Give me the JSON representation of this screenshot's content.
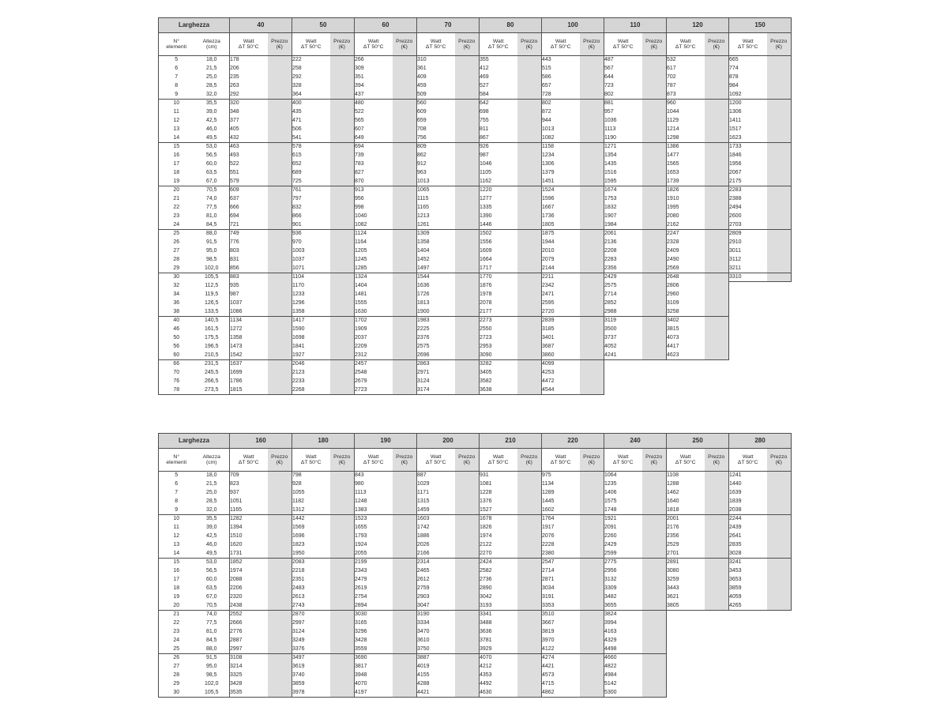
{
  "labels": {
    "larghezza": "Larghezza",
    "elementi_l1": "N°",
    "elementi_l2": "elementi",
    "altezza_l1": "Altezza",
    "altezza_l2": "(cm)",
    "watt_l1": "Watt",
    "watt_l2": "ΔT 50°C",
    "prezzo_l1": "Prezzo",
    "prezzo_l2": "(€)"
  },
  "colors": {
    "header_bg": "#d5d5d5",
    "prezzo_bg": "#dddddd",
    "line": "#4d4d4d",
    "text": "#2b2b2b",
    "page_bg": "#ffffff"
  },
  "tables": [
    {
      "name": "larghezza-40-150",
      "widths": [
        "40",
        "50",
        "60",
        "70",
        "80",
        "100",
        "110",
        "120",
        "150"
      ],
      "row_format": [
        "n_elementi",
        "altezza_cm",
        "watt_per_width..."
      ],
      "groups": [
        [
          [
            "5",
            "18,0",
            178,
            222,
            266,
            310,
            355,
            443,
            487,
            532,
            665
          ],
          [
            "6",
            "21,5",
            206,
            258,
            309,
            361,
            412,
            515,
            567,
            617,
            774
          ],
          [
            "7",
            "25,0",
            235,
            292,
            351,
            409,
            469,
            586,
            644,
            702,
            878
          ],
          [
            "8",
            "28,5",
            263,
            328,
            394,
            459,
            527,
            657,
            723,
            787,
            984
          ],
          [
            "9",
            "32,0",
            292,
            364,
            437,
            509,
            584,
            728,
            802,
            873,
            1092
          ]
        ],
        [
          [
            "10",
            "35,5",
            320,
            400,
            480,
            560,
            642,
            802,
            881,
            960,
            1200
          ],
          [
            "11",
            "39,0",
            348,
            435,
            522,
            609,
            698,
            872,
            957,
            1044,
            1306
          ],
          [
            "12",
            "42,5",
            377,
            471,
            565,
            659,
            755,
            944,
            1036,
            1129,
            1411
          ],
          [
            "13",
            "46,0",
            405,
            506,
            607,
            708,
            811,
            1013,
            1113,
            1214,
            1517
          ],
          [
            "14",
            "49,5",
            432,
            541,
            649,
            756,
            867,
            1082,
            1190,
            1298,
            1623
          ]
        ],
        [
          [
            "15",
            "53,0",
            463,
            578,
            694,
            809,
            926,
            1158,
            1271,
            1386,
            1733
          ],
          [
            "16",
            "56,5",
            493,
            615,
            739,
            862,
            987,
            1234,
            1354,
            1477,
            1846
          ],
          [
            "17",
            "60,0",
            522,
            652,
            783,
            912,
            1046,
            1306,
            1435,
            1565,
            1956
          ],
          [
            "18",
            "63,5",
            551,
            689,
            827,
            963,
            1105,
            1379,
            1516,
            1653,
            2067
          ],
          [
            "19",
            "67,0",
            579,
            725,
            870,
            1013,
            1162,
            1451,
            1595,
            1739,
            2175
          ]
        ],
        [
          [
            "20",
            "70,5",
            609,
            761,
            913,
            1065,
            1220,
            1524,
            1674,
            1826,
            2283
          ],
          [
            "21",
            "74,0",
            637,
            797,
            956,
            1115,
            1277,
            1596,
            1753,
            1910,
            2388
          ],
          [
            "22",
            "77,5",
            666,
            832,
            998,
            1165,
            1335,
            1667,
            1832,
            1995,
            2494
          ],
          [
            "23",
            "81,0",
            694,
            866,
            1040,
            1213,
            1390,
            1736,
            1907,
            2080,
            2600
          ],
          [
            "24",
            "84,5",
            721,
            901,
            1082,
            1261,
            1446,
            1805,
            1984,
            2162,
            2703
          ]
        ],
        [
          [
            "25",
            "88,0",
            749,
            936,
            1124,
            1309,
            1502,
            1875,
            2061,
            2247,
            2809
          ],
          [
            "26",
            "91,5",
            776,
            970,
            1164,
            1358,
            1556,
            1944,
            2136,
            2328,
            2910
          ],
          [
            "27",
            "95,0",
            803,
            1003,
            1205,
            1404,
            1609,
            2010,
            2208,
            2409,
            3011
          ],
          [
            "28",
            "98,5",
            831,
            1037,
            1245,
            1452,
            1664,
            2079,
            2283,
            2490,
            3112
          ],
          [
            "29",
            "102,0",
            856,
            1071,
            1285,
            1497,
            1717,
            2144,
            2356,
            2569,
            3211
          ]
        ],
        [
          [
            "30",
            "105,5",
            883,
            1104,
            1324,
            1544,
            1770,
            2211,
            2429,
            2648,
            3310
          ],
          [
            "32",
            "112,5",
            935,
            1170,
            1404,
            1636,
            1876,
            2342,
            2575,
            2806,
            null
          ],
          [
            "34",
            "119,5",
            987,
            1233,
            1481,
            1726,
            1978,
            2471,
            2714,
            2960,
            null
          ],
          [
            "36",
            "126,5",
            1037,
            1296,
            1555,
            1813,
            2078,
            2595,
            2852,
            3109,
            null
          ],
          [
            "38",
            "133,5",
            1086,
            1358,
            1630,
            1900,
            2177,
            2720,
            2988,
            3258,
            null
          ]
        ],
        [
          [
            "40",
            "140,5",
            1134,
            1417,
            1702,
            1983,
            2273,
            2839,
            3119,
            3402,
            null
          ],
          [
            "46",
            "161,5",
            1272,
            1590,
            1909,
            2225,
            2550,
            3185,
            3500,
            3815,
            null
          ],
          [
            "50",
            "175,5",
            1358,
            1698,
            2037,
            2376,
            2723,
            3401,
            3737,
            4073,
            null
          ],
          [
            "56",
            "196,5",
            1473,
            1841,
            2209,
            2575,
            2953,
            3687,
            4052,
            4417,
            null
          ],
          [
            "60",
            "210,5",
            1542,
            1927,
            2312,
            2696,
            3090,
            3860,
            4241,
            4623,
            null
          ]
        ],
        [
          [
            "66",
            "231,5",
            1637,
            2046,
            2457,
            2863,
            3282,
            4099,
            null,
            null,
            null
          ],
          [
            "70",
            "245,5",
            1699,
            2123,
            2548,
            2971,
            3405,
            4253,
            null,
            null,
            null
          ],
          [
            "76",
            "266,5",
            1786,
            2233,
            2679,
            3124,
            3582,
            4472,
            null,
            null,
            null
          ],
          [
            "78",
            "273,5",
            1815,
            2268,
            2723,
            3174,
            3638,
            4544,
            null,
            null,
            null
          ]
        ]
      ]
    },
    {
      "name": "larghezza-160-280",
      "widths": [
        "160",
        "180",
        "190",
        "200",
        "210",
        "220",
        "240",
        "250",
        "280"
      ],
      "row_format": [
        "n_elementi",
        "altezza_cm",
        "watt_per_width..."
      ],
      "groups": [
        [
          [
            "5",
            "18,0",
            709,
            798,
            843,
            887,
            931,
            975,
            1064,
            1108,
            1241
          ],
          [
            "6",
            "21,5",
            823,
            928,
            980,
            1029,
            1081,
            1134,
            1235,
            1288,
            1440
          ],
          [
            "7",
            "25,0",
            937,
            1055,
            1113,
            1171,
            1228,
            1289,
            1406,
            1462,
            1639
          ],
          [
            "8",
            "28,5",
            1051,
            1182,
            1248,
            1315,
            1376,
            1445,
            1575,
            1640,
            1839
          ],
          [
            "9",
            "32,0",
            1165,
            1312,
            1383,
            1459,
            1527,
            1602,
            1748,
            1818,
            2038
          ]
        ],
        [
          [
            "10",
            "35,5",
            1282,
            1442,
            1523,
            1603,
            1678,
            1764,
            1921,
            2001,
            2244
          ],
          [
            "11",
            "39,0",
            1394,
            1569,
            1655,
            1742,
            1826,
            1917,
            2091,
            2176,
            2439
          ],
          [
            "12",
            "42,5",
            1510,
            1696,
            1793,
            1886,
            1974,
            2076,
            2260,
            2356,
            2641
          ],
          [
            "13",
            "46,0",
            1620,
            1823,
            1924,
            2026,
            2122,
            2228,
            2429,
            2529,
            2835
          ],
          [
            "14",
            "49,5",
            1731,
            1950,
            2055,
            2166,
            2270,
            2380,
            2599,
            2701,
            3028
          ]
        ],
        [
          [
            "15",
            "53,0",
            1852,
            2083,
            2199,
            2314,
            2424,
            2547,
            2775,
            2891,
            3241
          ],
          [
            "16",
            "56,5",
            1974,
            2218,
            2343,
            2465,
            2582,
            2714,
            2956,
            3080,
            3453
          ],
          [
            "17",
            "60,0",
            2088,
            2351,
            2479,
            2612,
            2736,
            2871,
            3132,
            3259,
            3653
          ],
          [
            "18",
            "63,5",
            2206,
            2483,
            2619,
            2759,
            2890,
            3034,
            3309,
            3443,
            3859
          ],
          [
            "19",
            "67,0",
            2320,
            2613,
            2754,
            2903,
            3042,
            3191,
            3482,
            3621,
            4059
          ],
          [
            "20",
            "70,5",
            2438,
            2743,
            2894,
            3047,
            3193,
            3353,
            3655,
            3805,
            4265
          ]
        ],
        [
          [
            "21",
            "74,0",
            2552,
            2870,
            3030,
            3190,
            3341,
            3510,
            3824,
            null,
            null
          ],
          [
            "22",
            "77,5",
            2666,
            2997,
            3165,
            3334,
            3488,
            3667,
            3994,
            null,
            null
          ],
          [
            "23",
            "81,0",
            2776,
            3124,
            3296,
            3470,
            3636,
            3819,
            4163,
            null,
            null
          ],
          [
            "24",
            "84,5",
            2887,
            3249,
            3428,
            3610,
            3781,
            3970,
            4329,
            null,
            null
          ],
          [
            "25",
            "88,0",
            2997,
            3376,
            3559,
            3750,
            3929,
            4122,
            4498,
            null,
            null
          ]
        ],
        [
          [
            "26",
            "91,5",
            3108,
            3497,
            3690,
            3887,
            4070,
            4274,
            4660,
            null,
            null
          ],
          [
            "27",
            "95,0",
            3214,
            3619,
            3817,
            4019,
            4212,
            4421,
            4822,
            null,
            null
          ],
          [
            "28",
            "98,5",
            3325,
            3740,
            3948,
            4155,
            4353,
            4573,
            4984,
            null,
            null
          ],
          [
            "29",
            "102,0",
            3428,
            3859,
            4070,
            4288,
            4492,
            4715,
            5142,
            null,
            null
          ],
          [
            "30",
            "105,5",
            3535,
            3978,
            4197,
            4421,
            4630,
            4862,
            5300,
            null,
            null
          ]
        ]
      ]
    }
  ]
}
